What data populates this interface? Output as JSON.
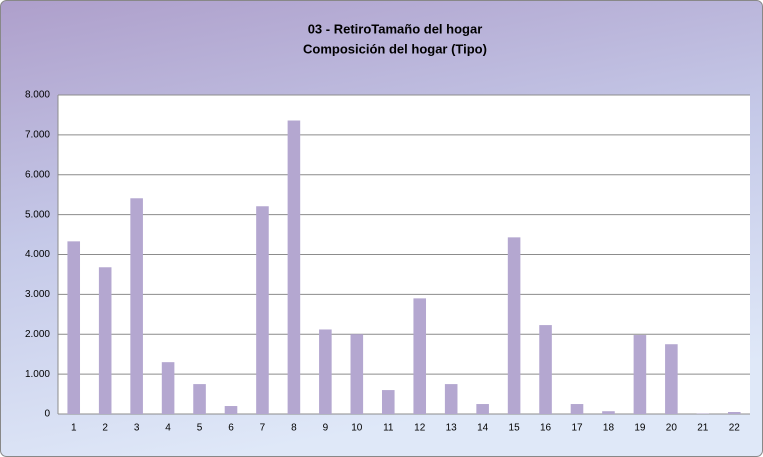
{
  "chart_data": {
    "type": "bar",
    "title": "03 - RetiroTamaño del hogar",
    "subtitle": "Composición del hogar (Tipo)",
    "categories": [
      "1",
      "2",
      "3",
      "4",
      "5",
      "6",
      "7",
      "8",
      "9",
      "10",
      "11",
      "12",
      "13",
      "14",
      "15",
      "16",
      "17",
      "18",
      "19",
      "20",
      "21",
      "22"
    ],
    "values": [
      4330,
      3680,
      5410,
      1300,
      750,
      200,
      5210,
      7360,
      2120,
      2000,
      600,
      2900,
      750,
      250,
      4430,
      2230,
      250,
      70,
      1980,
      1750,
      10,
      50
    ],
    "color": "#b4a7d0",
    "ylim": [
      0,
      8000
    ],
    "yticks": [
      0,
      {
        "value": 1000,
        "label": "1.000"
      },
      {
        "value": 2000,
        "label": "2.000"
      },
      {
        "value": 3000,
        "label": "3.000"
      },
      {
        "value": 4000,
        "label": "4.000"
      },
      {
        "value": 5000,
        "label": "5.000"
      },
      {
        "value": 6000,
        "label": "6.000"
      },
      {
        "value": 7000,
        "label": "7.000"
      },
      {
        "value": 8000,
        "label": "8.000"
      }
    ],
    "grid": true
  }
}
